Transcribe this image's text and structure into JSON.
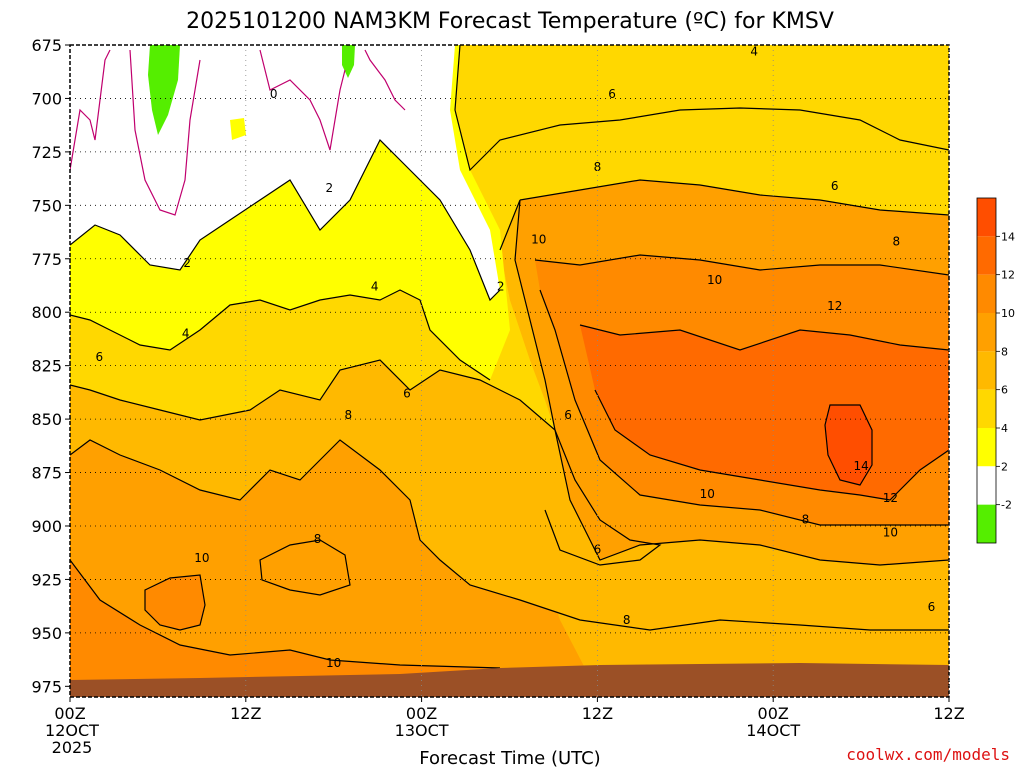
{
  "colors": {
    "below_neg2": "#55ee00",
    "neg2_2": "#ffffff",
    "c2_4": "#ffff00",
    "c4_6": "#ffd800",
    "c6_8": "#ffb900",
    "c8_10": "#ffa000",
    "c10_12": "#ff8a00",
    "c12_14": "#ff6a00",
    "c14_16": "#ff4e00",
    "terrain": "#9b5026",
    "credit": "#dd1111",
    "zero_line": "#c0006e"
  },
  "chart_data": {
    "type": "heatmap",
    "title": "2025101200 NAM3KM Forecast Temperature (ºC) for KMSV",
    "xlabel": "Forecast Time (UTC)",
    "ylabel": "",
    "credit": "coolwx.com/models",
    "x_ticks": [
      {
        "hour": 0,
        "line1": "00Z",
        "line2": "12OCT",
        "line3": "2025"
      },
      {
        "hour": 12,
        "line1": "12Z",
        "line2": "",
        "line3": ""
      },
      {
        "hour": 24,
        "line1": "00Z",
        "line2": "13OCT",
        "line3": ""
      },
      {
        "hour": 36,
        "line1": "12Z",
        "line2": "",
        "line3": ""
      },
      {
        "hour": 48,
        "line1": "00Z",
        "line2": "14OCT",
        "line3": ""
      },
      {
        "hour": 60,
        "line1": "12Z",
        "line2": "",
        "line3": ""
      }
    ],
    "xlim": [
      0,
      60
    ],
    "y_ticks": [
      "675",
      "700",
      "725",
      "750",
      "775",
      "800",
      "825",
      "850",
      "875",
      "900",
      "925",
      "950",
      "975"
    ],
    "ylim": [
      675,
      980
    ],
    "colorbar": {
      "labels": [
        "14",
        "12",
        "10",
        "8",
        "6",
        "4",
        "2",
        "-2"
      ],
      "bins": [
        "c14_16",
        "c12_14",
        "c10_12",
        "c8_10",
        "c6_8",
        "c4_6",
        "c2_4",
        "neg2_2",
        "below_neg2"
      ]
    },
    "contour_labels": [
      {
        "text": "0",
        "hour": 13.9,
        "p": 698
      },
      {
        "text": "2",
        "hour": 17.7,
        "p": 742
      },
      {
        "text": "2",
        "hour": 8.0,
        "p": 777
      },
      {
        "text": "2",
        "hour": 29.4,
        "p": 788
      },
      {
        "text": "4",
        "hour": 20.8,
        "p": 788
      },
      {
        "text": "4",
        "hour": 7.9,
        "p": 810
      },
      {
        "text": "4",
        "hour": 46.7,
        "p": 678
      },
      {
        "text": "6",
        "hour": 37.0,
        "p": 698
      },
      {
        "text": "6",
        "hour": 2.0,
        "p": 821
      },
      {
        "text": "6",
        "hour": 23.0,
        "p": 838
      },
      {
        "text": "6",
        "hour": 34.0,
        "p": 848
      },
      {
        "text": "6",
        "hour": 36.0,
        "p": 911
      },
      {
        "text": "6",
        "hour": 52.2,
        "p": 741
      },
      {
        "text": "6",
        "hour": 58.8,
        "p": 938
      },
      {
        "text": "8",
        "hour": 36.0,
        "p": 732
      },
      {
        "text": "8",
        "hour": 19.0,
        "p": 848
      },
      {
        "text": "8",
        "hour": 16.9,
        "p": 906
      },
      {
        "text": "8",
        "hour": 38.0,
        "p": 944
      },
      {
        "text": "8",
        "hour": 56.4,
        "p": 767
      },
      {
        "text": "8",
        "hour": 50.2,
        "p": 897
      },
      {
        "text": "10",
        "hour": 32.0,
        "p": 766
      },
      {
        "text": "10",
        "hour": 44.0,
        "p": 785
      },
      {
        "text": "10",
        "hour": 9.0,
        "p": 915
      },
      {
        "text": "10",
        "hour": 18.0,
        "p": 964
      },
      {
        "text": "10",
        "hour": 43.5,
        "p": 885
      },
      {
        "text": "10",
        "hour": 56.0,
        "p": 903
      },
      {
        "text": "12",
        "hour": 52.2,
        "p": 797
      },
      {
        "text": "12",
        "hour": 56.0,
        "p": 887
      },
      {
        "text": "14",
        "hour": 54.0,
        "p": 872
      }
    ]
  }
}
